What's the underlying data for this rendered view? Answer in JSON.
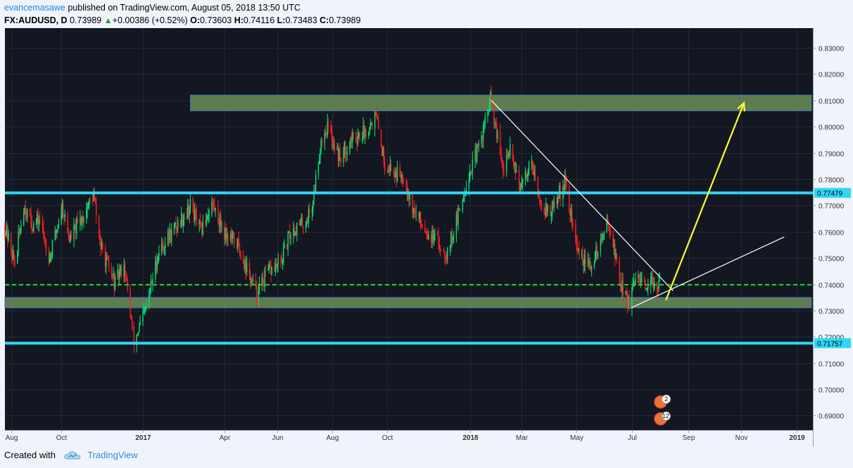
{
  "header": {
    "author": "evancemasawe",
    "published_text": "published on TradingView.com, August 05, 2018 13:50 UTC",
    "symbol": "FX:AUDUSD, D",
    "last": "0.73989",
    "change": "+0.00386 (+0.52%)",
    "open_label": "O:",
    "open": "0.73603",
    "high_label": "H:",
    "high": "0.74116",
    "low_label": "L:",
    "low": "0.73483",
    "close_label": "C:",
    "close": "0.73989"
  },
  "footer": {
    "created_with": "Created with",
    "brand": "TradingView"
  },
  "colors": {
    "background": "#131722",
    "candle_up": "#00e676",
    "candle_down": "#ff1f1f",
    "zone_fill": "#6b8f58",
    "resistance_line": "#2dd7f5",
    "dashed_line": "#22dd22",
    "arrow": "#ffff33",
    "trendline": "#ffffff"
  },
  "chart_data": {
    "type": "candlestick",
    "symbol": "FX:AUDUSD",
    "timeframe": "D",
    "ylim": [
      0.6845,
      0.8375
    ],
    "yticks": [
      "0.83000",
      "0.82000",
      "0.81000",
      "0.80000",
      "0.79000",
      "0.78000",
      "0.77000",
      "0.76000",
      "0.75000",
      "0.74000",
      "0.73000",
      "0.72000",
      "0.71000",
      "0.70000",
      "0.69000"
    ],
    "xlim": [
      "2016-08-01",
      "2019-01-20"
    ],
    "xticks": [
      {
        "label": "Aug",
        "date": "2016-08-08",
        "bold": false
      },
      {
        "label": "Oct",
        "date": "2016-10-03",
        "bold": false
      },
      {
        "label": "2017",
        "date": "2017-01-02",
        "bold": true
      },
      {
        "label": "Apr",
        "date": "2017-04-03",
        "bold": false
      },
      {
        "label": "Jun",
        "date": "2017-06-01",
        "bold": false
      },
      {
        "label": "Aug",
        "date": "2017-08-01",
        "bold": false
      },
      {
        "label": "Oct",
        "date": "2017-10-02",
        "bold": false
      },
      {
        "label": "2018",
        "date": "2018-01-02",
        "bold": true
      },
      {
        "label": "Mar",
        "date": "2018-03-01",
        "bold": false
      },
      {
        "label": "May",
        "date": "2018-05-01",
        "bold": false
      },
      {
        "label": "Jul",
        "date": "2018-07-02",
        "bold": false
      },
      {
        "label": "Sep",
        "date": "2018-09-03",
        "bold": false
      },
      {
        "label": "Nov",
        "date": "2018-11-01",
        "bold": false
      },
      {
        "label": "2019",
        "date": "2019-01-02",
        "bold": true
      }
    ],
    "price_path": [
      [
        "2016-08-01",
        0.762
      ],
      [
        "2016-08-12",
        0.748
      ],
      [
        "2016-08-22",
        0.77
      ],
      [
        "2016-09-02",
        0.762
      ],
      [
        "2016-09-08",
        0.765
      ],
      [
        "2016-09-20",
        0.75
      ],
      [
        "2016-10-04",
        0.77
      ],
      [
        "2016-10-12",
        0.757
      ],
      [
        "2016-10-24",
        0.764
      ],
      [
        "2016-11-08",
        0.774
      ],
      [
        "2016-11-16",
        0.754
      ],
      [
        "2016-12-02",
        0.74
      ],
      [
        "2016-12-12",
        0.748
      ],
      [
        "2016-12-23",
        0.718
      ],
      [
        "2017-01-05",
        0.73
      ],
      [
        "2017-01-20",
        0.753
      ],
      [
        "2017-02-08",
        0.762
      ],
      [
        "2017-02-24",
        0.77
      ],
      [
        "2017-03-08",
        0.76
      ],
      [
        "2017-03-20",
        0.771
      ],
      [
        "2017-04-03",
        0.76
      ],
      [
        "2017-04-18",
        0.755
      ],
      [
        "2017-05-09",
        0.736
      ],
      [
        "2017-05-20",
        0.744
      ],
      [
        "2017-06-05",
        0.748
      ],
      [
        "2017-06-16",
        0.76
      ],
      [
        "2017-07-03",
        0.764
      ],
      [
        "2017-07-10",
        0.77
      ],
      [
        "2017-07-20",
        0.795
      ],
      [
        "2017-07-27",
        0.8
      ],
      [
        "2017-08-10",
        0.788
      ],
      [
        "2017-08-22",
        0.795
      ],
      [
        "2017-09-06",
        0.798
      ],
      [
        "2017-09-19",
        0.804
      ],
      [
        "2017-09-29",
        0.786
      ],
      [
        "2017-10-12",
        0.782
      ],
      [
        "2017-10-20",
        0.782
      ],
      [
        "2017-10-31",
        0.768
      ],
      [
        "2017-11-16",
        0.76
      ],
      [
        "2017-12-07",
        0.752
      ],
      [
        "2017-12-20",
        0.766
      ],
      [
        "2017-12-29",
        0.779
      ],
      [
        "2018-01-12",
        0.792
      ],
      [
        "2018-01-25",
        0.81
      ],
      [
        "2018-02-09",
        0.782
      ],
      [
        "2018-02-16",
        0.793
      ],
      [
        "2018-02-28",
        0.776
      ],
      [
        "2018-03-12",
        0.788
      ],
      [
        "2018-03-20",
        0.772
      ],
      [
        "2018-04-02",
        0.767
      ],
      [
        "2018-04-18",
        0.779
      ],
      [
        "2018-05-02",
        0.753
      ],
      [
        "2018-05-16",
        0.746
      ],
      [
        "2018-05-28",
        0.756
      ],
      [
        "2018-06-06",
        0.764
      ],
      [
        "2018-06-19",
        0.741
      ],
      [
        "2018-06-28",
        0.733
      ],
      [
        "2018-07-09",
        0.743
      ],
      [
        "2018-07-18",
        0.736
      ],
      [
        "2018-07-27",
        0.742
      ],
      [
        "2018-08-03",
        0.738
      ]
    ],
    "zones": [
      {
        "from": "2017-02-24",
        "to": "2019-01-20",
        "low": 0.806,
        "high": 0.812
      },
      {
        "from": "2016-08-01",
        "to": "2019-01-20",
        "low": 0.731,
        "high": 0.735
      }
    ],
    "horizontal_lines": [
      {
        "price": 0.77479,
        "style": "solid",
        "color": "#2dd7f5",
        "label": "0.77479"
      },
      {
        "price": 0.71757,
        "style": "solid",
        "color": "#2dd7f5",
        "label": "0.71757"
      },
      {
        "price": 0.7398,
        "style": "dashed",
        "color": "#22dd22",
        "label": ""
      }
    ],
    "trendlines": [
      {
        "from": [
          "2018-01-26",
          0.81
        ],
        "to": [
          "2018-08-17",
          0.7375
        ],
        "color": "#ffffff"
      },
      {
        "from": [
          "2018-07-01",
          0.731
        ],
        "to": [
          "2018-12-19",
          0.758
        ],
        "color": "#ffffff"
      }
    ],
    "arrows": [
      {
        "from": [
          "2018-08-09",
          0.734
        ],
        "to": [
          "2018-11-04",
          0.809
        ],
        "color": "#ffff33"
      }
    ],
    "event_badges": [
      {
        "date": "2018-08-03",
        "text": "2"
      },
      {
        "date": "2018-08-03",
        "text": "12'"
      }
    ]
  }
}
